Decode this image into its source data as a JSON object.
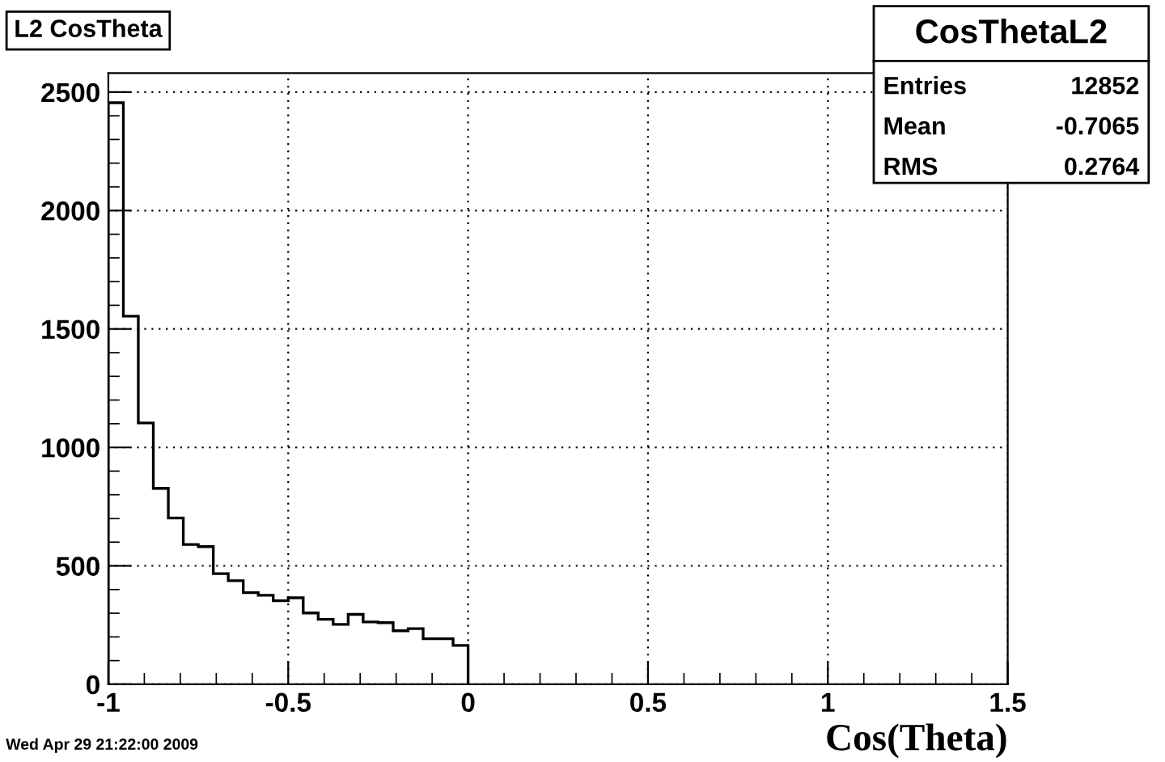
{
  "chart_data": {
    "type": "histogram",
    "title": "L2 CosTheta",
    "xlabel": "Cos(Theta)",
    "bins": [
      -1,
      -0.9583,
      -0.9167,
      -0.875,
      -0.8333,
      -0.7917,
      -0.75,
      -0.7083,
      -0.6667,
      -0.625,
      -0.5833,
      -0.5417,
      -0.5,
      -0.4583,
      -0.4167,
      -0.375,
      -0.3333,
      -0.2917,
      -0.25,
      -0.2083,
      -0.1667,
      -0.125,
      -0.0833,
      -0.0417,
      0
    ],
    "values": [
      2455,
      1554,
      1103,
      827,
      702,
      590,
      581,
      467,
      437,
      387,
      376,
      353,
      365,
      301,
      274,
      253,
      295,
      263,
      260,
      226,
      235,
      192,
      192,
      164
    ],
    "color": "#000000",
    "xlim": [
      -1,
      1.5
    ],
    "xticks": [
      {
        "value": -1,
        "label": "-1"
      },
      {
        "value": -0.5,
        "label": "-0.5"
      },
      0,
      0.5,
      1,
      1.5
    ],
    "ylim": [
      0,
      2580
    ],
    "yticks": [
      0,
      500,
      1000,
      1500,
      2000,
      2500
    ],
    "grid": true,
    "annotations": [
      "Wed Apr 29 21:22:00 2009",
      "CosThetaL2",
      "Entries",
      "12852",
      "Mean",
      "-0.7065",
      "RMS",
      "0.2764"
    ]
  }
}
